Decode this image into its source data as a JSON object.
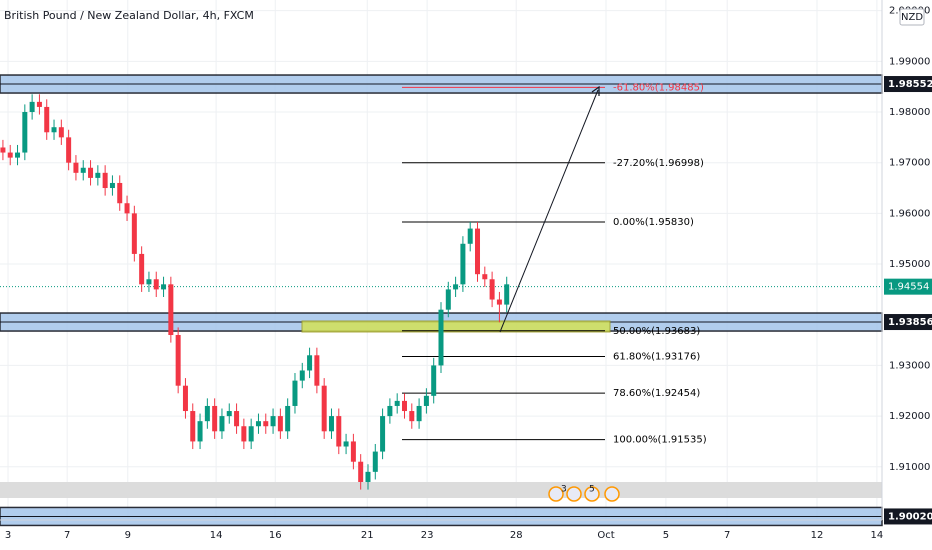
{
  "chart_data": {
    "type": "candlestick",
    "title": "British Pound / New Zealand Dollar, 4h, FXCM",
    "currency": "NZD",
    "up_color": "#089981",
    "down_color": "#f23645",
    "open": [
      1.973,
      1.972,
      1.971,
      1.972,
      1.98,
      1.982,
      1.981,
      1.976,
      1.977,
      1.975,
      1.97,
      1.968,
      1.969,
      1.967,
      1.968,
      1.965,
      1.966,
      1.962,
      1.96,
      1.952,
      1.946,
      1.947,
      1.945,
      1.946,
      1.936,
      1.926,
      1.921,
      1.915,
      1.919,
      1.922,
      1.917,
      1.92,
      1.921,
      1.918,
      1.915,
      1.918,
      1.919,
      1.918,
      1.92,
      1.917,
      1.922,
      1.927,
      1.929,
      1.932,
      1.926,
      1.917,
      1.92,
      1.914,
      1.915,
      1.911,
      1.907,
      1.909,
      1.913,
      1.92,
      1.922,
      1.923,
      1.921,
      1.919,
      1.922,
      1.924,
      1.93,
      1.941,
      1.945,
      1.946,
      1.954,
      1.957,
      1.948,
      1.947,
      1.943,
      1.942
    ],
    "high": [
      1.9745,
      1.9735,
      1.9735,
      1.9815,
      1.9835,
      1.9835,
      1.9825,
      1.9785,
      1.9785,
      1.9765,
      1.9715,
      1.9705,
      1.9705,
      1.9695,
      1.9695,
      1.9675,
      1.9675,
      1.9635,
      1.9615,
      1.9535,
      1.9485,
      1.9485,
      1.9475,
      1.9475,
      1.9375,
      1.9275,
      1.9225,
      1.9205,
      1.9235,
      1.9235,
      1.9215,
      1.9225,
      1.9225,
      1.9195,
      1.9195,
      1.9205,
      1.9205,
      1.9215,
      1.9215,
      1.9235,
      1.9285,
      1.9305,
      1.9335,
      1.9335,
      1.9275,
      1.9215,
      1.9215,
      1.9165,
      1.9165,
      1.9125,
      1.9105,
      1.9145,
      1.9215,
      1.9235,
      1.9245,
      1.9245,
      1.9225,
      1.9235,
      1.9255,
      1.9315,
      1.9425,
      1.9465,
      1.9475,
      1.9555,
      1.9583,
      1.9583,
      1.9495,
      1.9485,
      1.9445,
      1.9475
    ],
    "low": [
      1.9705,
      1.9695,
      1.9695,
      1.9705,
      1.9785,
      1.9795,
      1.9745,
      1.9745,
      1.9735,
      1.9685,
      1.9665,
      1.9665,
      1.9655,
      1.9655,
      1.9635,
      1.9635,
      1.9605,
      1.9585,
      1.9505,
      1.9445,
      1.9445,
      1.9435,
      1.9435,
      1.9345,
      1.9245,
      1.9195,
      1.9135,
      1.9135,
      1.9175,
      1.9155,
      1.9155,
      1.9185,
      1.9165,
      1.9135,
      1.9135,
      1.9165,
      1.9165,
      1.9165,
      1.9155,
      1.9155,
      1.9205,
      1.9255,
      1.9275,
      1.9245,
      1.9155,
      1.9155,
      1.9125,
      1.9125,
      1.9095,
      1.9055,
      1.9055,
      1.9075,
      1.9115,
      1.9185,
      1.9205,
      1.9195,
      1.9175,
      1.9175,
      1.9205,
      1.9225,
      1.9285,
      1.9395,
      1.9435,
      1.9445,
      1.9525,
      1.9465,
      1.9455,
      1.9415,
      1.9385,
      1.9405
    ],
    "close": [
      1.972,
      1.971,
      1.972,
      1.98,
      1.982,
      1.981,
      1.976,
      1.977,
      1.975,
      1.97,
      1.968,
      1.969,
      1.967,
      1.968,
      1.965,
      1.966,
      1.962,
      1.96,
      1.952,
      1.946,
      1.947,
      1.945,
      1.946,
      1.936,
      1.926,
      1.921,
      1.915,
      1.919,
      1.922,
      1.917,
      1.92,
      1.921,
      1.918,
      1.915,
      1.918,
      1.919,
      1.918,
      1.92,
      1.917,
      1.922,
      1.927,
      1.929,
      1.932,
      1.926,
      1.917,
      1.92,
      1.914,
      1.915,
      1.911,
      1.907,
      1.909,
      1.913,
      1.92,
      1.922,
      1.923,
      1.921,
      1.919,
      1.922,
      1.924,
      1.93,
      1.941,
      1.945,
      1.946,
      1.954,
      1.957,
      1.948,
      1.947,
      1.943,
      1.942,
      1.946
    ],
    "xlim": [
      -0.4,
      120.4
    ],
    "xticks": [
      {
        "value": 0.7,
        "label": "3"
      },
      {
        "value": 8.8,
        "label": "7"
      },
      {
        "value": 17.1,
        "label": "9"
      },
      {
        "value": 29.2,
        "label": "14"
      },
      {
        "value": 37.3,
        "label": "16"
      },
      {
        "value": 49.9,
        "label": "21"
      },
      {
        "value": 58.1,
        "label": "23"
      },
      {
        "value": 70.3,
        "label": "28"
      },
      {
        "value": 82.6,
        "label": "Oct"
      },
      {
        "value": 90.8,
        "label": "5"
      },
      {
        "value": 99.2,
        "label": "7"
      },
      {
        "value": 111.5,
        "label": "12"
      },
      {
        "value": 119.7,
        "label": "14"
      }
    ],
    "ylim": [
      1.8995,
      2.0021
    ],
    "yticks": [
      {
        "value": 2.0,
        "label": "2.00000"
      },
      {
        "value": 1.99,
        "label": "1.99000"
      },
      {
        "value": 1.98,
        "label": "1.98000"
      },
      {
        "value": 1.97,
        "label": "1.97000"
      },
      {
        "value": 1.96,
        "label": "1.96000"
      },
      {
        "value": 1.95,
        "label": "1.95000"
      },
      {
        "value": 1.93,
        "label": "1.93000"
      },
      {
        "value": 1.92,
        "label": "1.92000"
      },
      {
        "value": 1.91,
        "label": "1.91000"
      }
    ],
    "grid": true,
    "zones": [
      {
        "value": 1.98552,
        "label": "1.98552"
      },
      {
        "value": 1.93856,
        "label": "1.93856"
      },
      {
        "value": 1.9002,
        "label": "1.90020"
      }
    ],
    "last_price": {
      "value": 1.94554,
      "label": "1.94554",
      "color": "#089981"
    },
    "fib_levels": [
      {
        "value": 1.98485,
        "label": "-61.80%(1.98485)",
        "color": "#f23645"
      },
      {
        "value": 1.96998,
        "label": "-27.20%(1.96998)",
        "color": "#000000"
      },
      {
        "value": 1.9583,
        "label": "0.00%(1.95830)",
        "color": "#000000"
      },
      {
        "value": 1.93683,
        "label": "50.00%(1.93683)",
        "color": "#000000"
      },
      {
        "value": 1.93176,
        "label": "61.80%(1.93176)",
        "color": "#000000"
      },
      {
        "value": 1.92454,
        "label": "78.60%(1.92454)",
        "color": "#000000"
      },
      {
        "value": 1.91535,
        "label": "100.00%(1.91535)",
        "color": "#000000"
      }
    ],
    "events": [
      "3",
      "5"
    ]
  }
}
